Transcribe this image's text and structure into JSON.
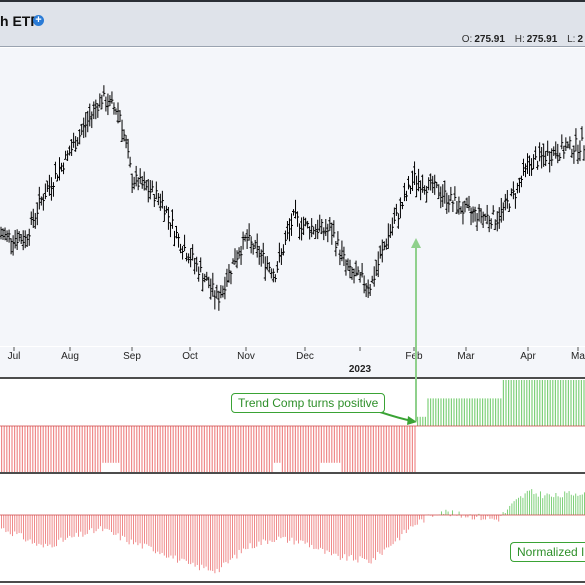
{
  "header": {
    "title": "h ETF",
    "ohl": [
      {
        "key": "O:",
        "value": "275.91"
      },
      {
        "key": "H:",
        "value": "275.91"
      },
      {
        "key": "L:",
        "value": "2"
      }
    ]
  },
  "annotations": {
    "trend_comp": "Trend Comp turns positive",
    "normalized": "Normalized I"
  },
  "colors": {
    "positive": "#7fd07a",
    "negative": "#ef8a8a",
    "price_bar": "#000000",
    "arrow": "#3aa335",
    "signal_line": "#8fd08c"
  },
  "chart_data": [
    {
      "type": "bar",
      "chart_kind": "OHLC price bars",
      "x_tick_labels": [
        "Jul",
        "Aug",
        "Sep",
        "Oct",
        "Nov",
        "Dec",
        "2023",
        "Feb",
        "Mar",
        "Apr",
        "Ma"
      ],
      "grid": false,
      "series": [
        {
          "name": "",
          "approx_close_path": [
            [
              "Jun",
              263
            ],
            [
              "early Jul",
              262
            ],
            [
              "mid Jul",
              268
            ],
            [
              "Aug",
              275
            ],
            [
              "mid Aug",
              283
            ],
            [
              "late Aug",
              281
            ],
            [
              "Sep",
              271
            ],
            [
              "mid Sep",
              268
            ],
            [
              "late Sep",
              262
            ],
            [
              "early Oct",
              257
            ],
            [
              "mid Oct",
              253
            ],
            [
              "late Oct",
              259
            ],
            [
              "Nov",
              262
            ],
            [
              "mid Nov",
              257
            ],
            [
              "late Nov",
              265
            ],
            [
              "Dec",
              264
            ],
            [
              "mid Dec",
              263
            ],
            [
              "late Dec",
              257
            ],
            [
              "early Jan",
              255
            ],
            [
              "mid Jan",
              262
            ],
            [
              "Feb",
              271
            ],
            [
              "mid Feb",
              269
            ],
            [
              "Mar",
              266
            ],
            [
              "mid Mar",
              265
            ],
            [
              "late Mar",
              269
            ],
            [
              "Apr",
              273
            ],
            [
              "mid Apr",
              275
            ],
            [
              "May",
              276
            ]
          ]
        }
      ]
    },
    {
      "type": "bar",
      "indicator": "Trend Composite",
      "zero_line": true,
      "segments": [
        {
          "period": "Jun - mid Aug",
          "value": -5
        },
        {
          "period": "mid Aug - late Aug",
          "value": -4
        },
        {
          "period": "late Aug - mid Nov",
          "value": -5
        },
        {
          "period": "mid Nov",
          "value": -4
        },
        {
          "period": "mid Nov - early Dec",
          "value": -5
        },
        {
          "period": "early Dec - mid Dec",
          "value": -4
        },
        {
          "period": "mid Dec - Jan",
          "value": -5
        },
        {
          "period": "late Jan",
          "value": 1
        },
        {
          "period": "early Feb - late Mar",
          "value": 3
        },
        {
          "period": "late Mar - May",
          "value": 5
        }
      ]
    },
    {
      "type": "bar",
      "indicator": "Normalized",
      "zero_line": true,
      "approx_values": [
        [
          "Jun",
          -1
        ],
        [
          "Jul",
          -4
        ],
        [
          "mid Jul",
          -7
        ],
        [
          "Aug",
          -5
        ],
        [
          "mid Aug",
          -3
        ],
        [
          "Sep",
          -6
        ],
        [
          "mid Sep",
          -8
        ],
        [
          "Oct",
          -11
        ],
        [
          "mid Oct",
          -12
        ],
        [
          "Nov",
          -7
        ],
        [
          "mid Nov",
          -5
        ],
        [
          "Dec",
          -6
        ],
        [
          "mid Dec",
          -9
        ],
        [
          "early Jan",
          -10
        ],
        [
          "mid Jan",
          -7
        ],
        [
          "late Jan",
          -4
        ],
        [
          "Feb",
          -2
        ],
        [
          "mid Feb",
          1
        ],
        [
          "late Feb",
          0
        ],
        [
          "Mar",
          0
        ],
        [
          "mid Mar",
          -1
        ],
        [
          "late Mar",
          3
        ],
        [
          "Apr",
          5
        ],
        [
          "mid Apr",
          4
        ],
        [
          "May",
          5
        ]
      ]
    }
  ]
}
